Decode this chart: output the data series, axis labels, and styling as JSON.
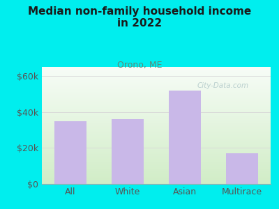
{
  "title": "Median non-family household income\nin 2022",
  "subtitle": "Orono, ME",
  "categories": [
    "All",
    "White",
    "Asian",
    "Multirace"
  ],
  "values": [
    35000,
    36000,
    52000,
    17000
  ],
  "bar_color": "#c9b8e8",
  "background_outer": "#00EEEE",
  "title_color": "#1a1a1a",
  "subtitle_color": "#5a8a7a",
  "yticks": [
    0,
    20000,
    40000,
    60000
  ],
  "ytick_labels": [
    "$0",
    "$20k",
    "$40k",
    "$60k"
  ],
  "ylim": [
    0,
    65000
  ],
  "watermark": "City-Data.com",
  "grid_color": "#d8d8d8",
  "tick_label_color": "#555555",
  "plot_bg_colors": [
    "#f8fef8",
    "#dff0d0"
  ],
  "watermark_color": "#b0c8c8"
}
